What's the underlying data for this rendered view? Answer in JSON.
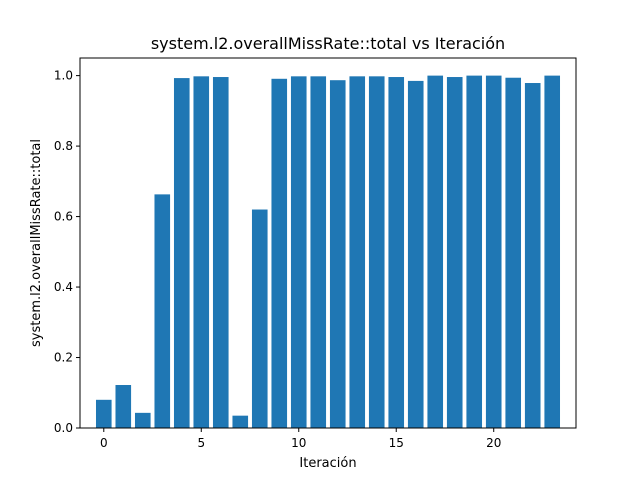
{
  "chart_data": {
    "type": "bar",
    "title": "system.l2.overallMissRate::total vs Iteración",
    "xlabel": "Iteración",
    "ylabel": "system.l2.overallMissRate::total",
    "x": [
      0,
      1,
      2,
      3,
      4,
      5,
      6,
      7,
      8,
      9,
      10,
      11,
      12,
      13,
      14,
      15,
      16,
      17,
      18,
      19,
      20,
      21,
      22,
      23
    ],
    "values": [
      0.08,
      0.122,
      0.043,
      0.663,
      0.993,
      0.998,
      0.996,
      0.035,
      0.62,
      0.991,
      0.998,
      0.998,
      0.987,
      0.998,
      0.998,
      0.996,
      0.985,
      1.0,
      0.996,
      1.0,
      1.0,
      0.994,
      0.979,
      1.0
    ],
    "xlim": [
      -1.22,
      24.22
    ],
    "ylim": [
      0,
      1.05
    ],
    "xticks": [
      0,
      5,
      10,
      15,
      20
    ],
    "xtick_labels": [
      "0",
      "5",
      "10",
      "15",
      "20"
    ],
    "yticks": [
      0.0,
      0.2,
      0.4,
      0.6,
      0.8,
      1.0
    ],
    "ytick_labels": [
      "0.0",
      "0.2",
      "0.4",
      "0.6",
      "0.8",
      "1.0"
    ],
    "bar_color": "#1f77b4",
    "grid": false,
    "legend": "none"
  }
}
